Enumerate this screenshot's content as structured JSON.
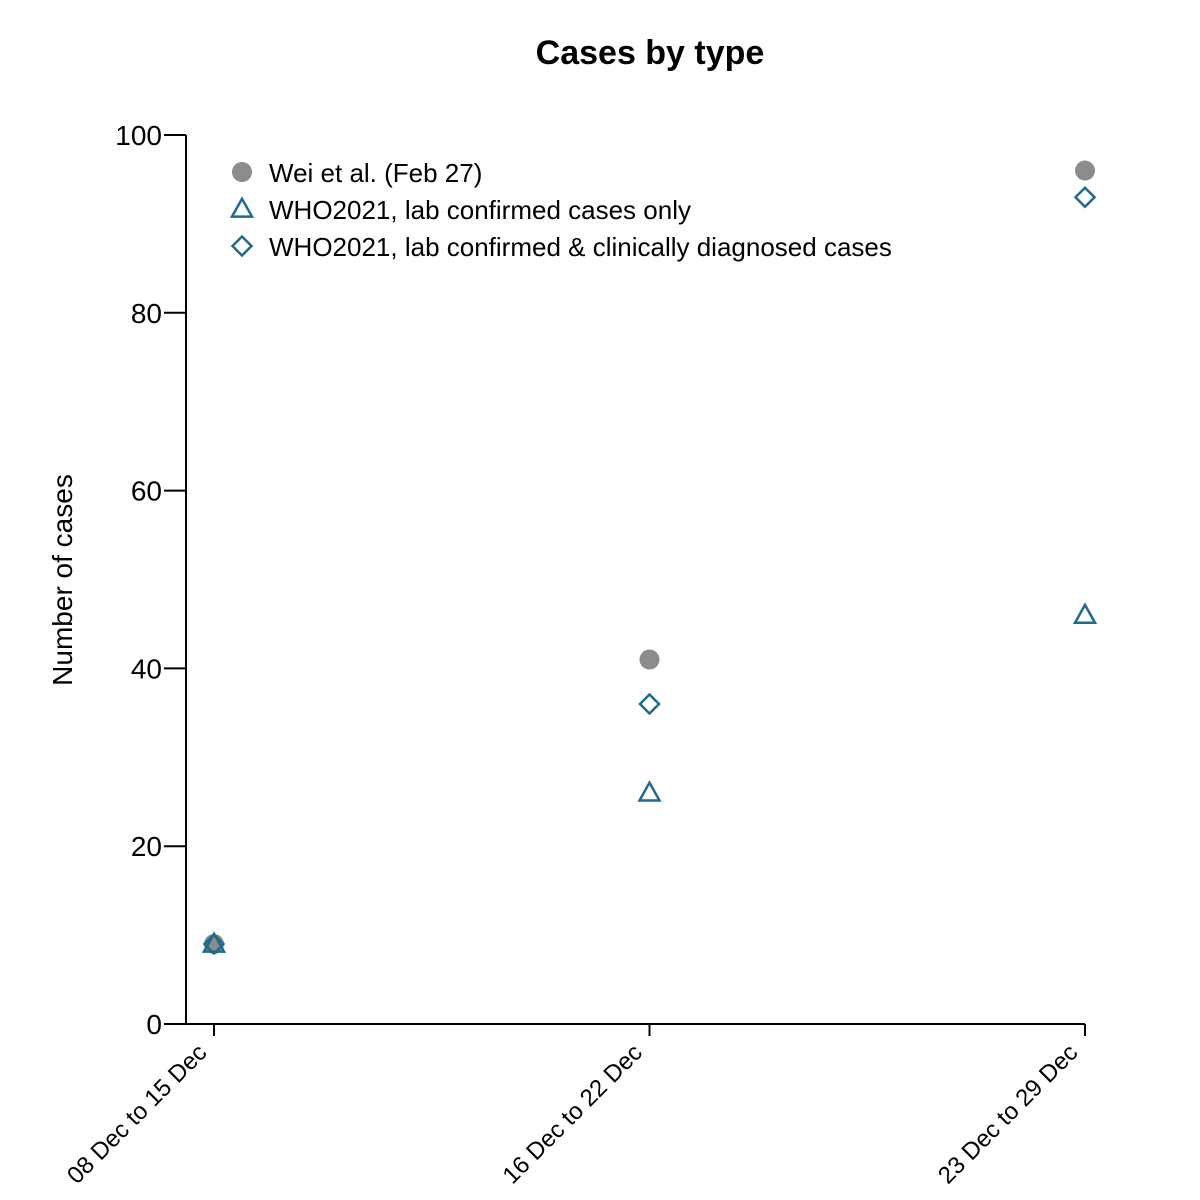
{
  "chart_data": {
    "type": "scatter",
    "title": "Cases by type",
    "xlabel": "",
    "ylabel": "Number of cases",
    "categories": [
      "08 Dec to 15 Dec",
      "16 Dec to 22 Dec",
      "23 Dec to 29 Dec"
    ],
    "ylim": [
      0,
      100
    ],
    "yticks": [
      0,
      20,
      40,
      60,
      80,
      100
    ],
    "grid": false,
    "legend_position": "top-left",
    "series": [
      {
        "name": "Wei et al. (Feb 27)",
        "marker": "circle-filled",
        "color": "#8c8c8c",
        "values": [
          9,
          41,
          96
        ]
      },
      {
        "name": "WHO2021, lab confirmed cases only",
        "marker": "triangle-open",
        "color": "#1f6a8e",
        "values": [
          9,
          26,
          46
        ]
      },
      {
        "name": "WHO2021, lab confirmed & clinically diagnosed cases",
        "marker": "diamond-open",
        "color": "#1f6a8e",
        "values": [
          9,
          36,
          93
        ]
      }
    ]
  }
}
